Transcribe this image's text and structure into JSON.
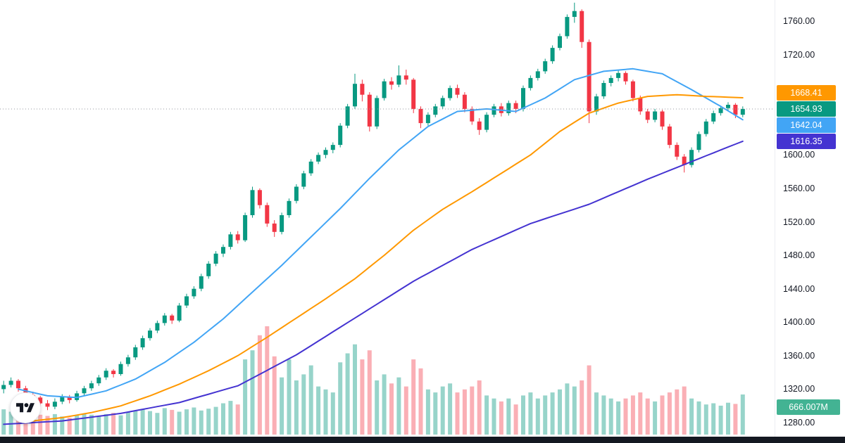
{
  "colors": {
    "background": "#ffffff",
    "candle_up": "#089981",
    "candle_down": "#f23645",
    "volume_up": "rgba(8,153,129,0.42)",
    "volume_down": "rgba(242,54,69,0.40)",
    "ma_fast": "#42a5f5",
    "ma_mid": "#ff9800",
    "ma_slow": "#4433d1",
    "last_price": "#089981",
    "volume_badge": "#43b393",
    "axis_text": "#131722",
    "price_line": "#9598a1"
  },
  "axis": {
    "ticks": [
      {
        "label": "1760.00",
        "price": 1760
      },
      {
        "label": "1720.00",
        "price": 1720
      },
      {
        "label": "1600.00",
        "price": 1600
      },
      {
        "label": "1560.00",
        "price": 1560
      },
      {
        "label": "1520.00",
        "price": 1520
      },
      {
        "label": "1480.00",
        "price": 1480
      },
      {
        "label": "1440.00",
        "price": 1440
      },
      {
        "label": "1400.00",
        "price": 1400
      },
      {
        "label": "1360.00",
        "price": 1360
      },
      {
        "label": "1320.00",
        "price": 1320
      },
      {
        "label": "1280.00",
        "price": 1280
      }
    ]
  },
  "badges": [
    {
      "name": "price-badge-ma-mid",
      "text": "1668.41",
      "color_key": "ma_mid"
    },
    {
      "name": "price-badge-last",
      "text": "1654.93",
      "color_key": "last_price"
    },
    {
      "name": "price-badge-ma-fast",
      "text": "1642.04",
      "color_key": "ma_fast"
    },
    {
      "name": "price-badge-ma-slow",
      "text": "1616.35",
      "color_key": "ma_slow"
    }
  ],
  "volume_badge": {
    "text": "666.007M",
    "color_key": "volume_badge"
  },
  "chart_data": {
    "type": "candlestick",
    "price_axis": {
      "min": 1280,
      "max": 1760
    },
    "last_price": 1654.93,
    "last_volume_label": "666.007M",
    "price_line": {
      "value": 1654.93,
      "style": "dotted"
    },
    "candles": [
      [
        1320,
        1330,
        1315,
        1325
      ],
      [
        1325,
        1334,
        1322,
        1330
      ],
      [
        1330,
        1332,
        1317,
        1321
      ],
      [
        1321,
        1324,
        1309,
        1313
      ],
      [
        1313,
        1317,
        1306,
        1310
      ],
      [
        1310,
        1312,
        1299,
        1303
      ],
      [
        1303,
        1307,
        1295,
        1299
      ],
      [
        1299,
        1309,
        1296,
        1305
      ],
      [
        1305,
        1314,
        1302,
        1311
      ],
      [
        1311,
        1313,
        1303,
        1307
      ],
      [
        1307,
        1318,
        1305,
        1315
      ],
      [
        1315,
        1324,
        1312,
        1321
      ],
      [
        1321,
        1330,
        1318,
        1327
      ],
      [
        1327,
        1337,
        1324,
        1334
      ],
      [
        1334,
        1345,
        1331,
        1342
      ],
      [
        1342,
        1344,
        1334,
        1338
      ],
      [
        1338,
        1353,
        1336,
        1350
      ],
      [
        1350,
        1361,
        1347,
        1358
      ],
      [
        1358,
        1373,
        1355,
        1370
      ],
      [
        1370,
        1384,
        1367,
        1381
      ],
      [
        1381,
        1393,
        1378,
        1390
      ],
      [
        1390,
        1402,
        1387,
        1399
      ],
      [
        1399,
        1411,
        1396,
        1408
      ],
      [
        1408,
        1410,
        1398,
        1402
      ],
      [
        1402,
        1423,
        1400,
        1420
      ],
      [
        1420,
        1434,
        1417,
        1431
      ],
      [
        1431,
        1443,
        1428,
        1440
      ],
      [
        1440,
        1458,
        1437,
        1455
      ],
      [
        1455,
        1473,
        1452,
        1470
      ],
      [
        1470,
        1485,
        1467,
        1482
      ],
      [
        1482,
        1493,
        1478,
        1490
      ],
      [
        1490,
        1508,
        1487,
        1505
      ],
      [
        1505,
        1509,
        1494,
        1498
      ],
      [
        1498,
        1531,
        1496,
        1528
      ],
      [
        1528,
        1562,
        1525,
        1558
      ],
      [
        1558,
        1560,
        1536,
        1540
      ],
      [
        1540,
        1543,
        1514,
        1518
      ],
      [
        1518,
        1522,
        1502,
        1508
      ],
      [
        1508,
        1531,
        1505,
        1528
      ],
      [
        1528,
        1548,
        1525,
        1545
      ],
      [
        1545,
        1565,
        1542,
        1562
      ],
      [
        1562,
        1581,
        1559,
        1578
      ],
      [
        1578,
        1595,
        1575,
        1592
      ],
      [
        1592,
        1603,
        1589,
        1600
      ],
      [
        1600,
        1609,
        1596,
        1606
      ],
      [
        1606,
        1615,
        1602,
        1612
      ],
      [
        1612,
        1638,
        1609,
        1635
      ],
      [
        1635,
        1661,
        1632,
        1658
      ],
      [
        1658,
        1697,
        1655,
        1685
      ],
      [
        1685,
        1690,
        1664,
        1672
      ],
      [
        1672,
        1675,
        1628,
        1634
      ],
      [
        1634,
        1671,
        1631,
        1668
      ],
      [
        1668,
        1691,
        1665,
        1688
      ],
      [
        1688,
        1693,
        1678,
        1684
      ],
      [
        1684,
        1707,
        1681,
        1695
      ],
      [
        1695,
        1702,
        1684,
        1690
      ],
      [
        1690,
        1692,
        1650,
        1655
      ],
      [
        1655,
        1658,
        1632,
        1638
      ],
      [
        1638,
        1651,
        1635,
        1648
      ],
      [
        1648,
        1661,
        1645,
        1658
      ],
      [
        1658,
        1671,
        1655,
        1668
      ],
      [
        1668,
        1683,
        1665,
        1680
      ],
      [
        1680,
        1684,
        1668,
        1672
      ],
      [
        1672,
        1675,
        1651,
        1655
      ],
      [
        1655,
        1658,
        1636,
        1640
      ],
      [
        1640,
        1644,
        1624,
        1630
      ],
      [
        1630,
        1651,
        1627,
        1648
      ],
      [
        1648,
        1661,
        1645,
        1658
      ],
      [
        1658,
        1662,
        1646,
        1650
      ],
      [
        1650,
        1665,
        1647,
        1662
      ],
      [
        1662,
        1665,
        1650,
        1655
      ],
      [
        1655,
        1683,
        1652,
        1680
      ],
      [
        1680,
        1695,
        1677,
        1692
      ],
      [
        1692,
        1703,
        1689,
        1700
      ],
      [
        1700,
        1715,
        1697,
        1712
      ],
      [
        1712,
        1731,
        1709,
        1728
      ],
      [
        1728,
        1745,
        1725,
        1742
      ],
      [
        1742,
        1768,
        1739,
        1765
      ],
      [
        1765,
        1782,
        1758,
        1772
      ],
      [
        1772,
        1774,
        1728,
        1735
      ],
      [
        1735,
        1738,
        1638,
        1652
      ],
      [
        1652,
        1673,
        1648,
        1670
      ],
      [
        1670,
        1689,
        1667,
        1686
      ],
      [
        1686,
        1695,
        1682,
        1692
      ],
      [
        1692,
        1701,
        1688,
        1698
      ],
      [
        1698,
        1700,
        1684,
        1688
      ],
      [
        1688,
        1690,
        1664,
        1668
      ],
      [
        1668,
        1671,
        1648,
        1652
      ],
      [
        1652,
        1655,
        1638,
        1642
      ],
      [
        1642,
        1655,
        1639,
        1652
      ],
      [
        1652,
        1654,
        1630,
        1634
      ],
      [
        1634,
        1637,
        1608,
        1612
      ],
      [
        1612,
        1615,
        1594,
        1598
      ],
      [
        1598,
        1601,
        1579,
        1588
      ],
      [
        1588,
        1609,
        1585,
        1606
      ],
      [
        1606,
        1628,
        1603,
        1625
      ],
      [
        1625,
        1643,
        1622,
        1640
      ],
      [
        1640,
        1653,
        1637,
        1650
      ],
      [
        1650,
        1659,
        1647,
        1656
      ],
      [
        1656,
        1663,
        1652,
        1660
      ],
      [
        1660,
        1662,
        1644,
        1648
      ],
      [
        1648,
        1658,
        1645,
        1654.93
      ]
    ],
    "volumes_millions": [
      420,
      380,
      350,
      400,
      360,
      330,
      310,
      340,
      300,
      280,
      320,
      350,
      330,
      310,
      340,
      360,
      320,
      380,
      400,
      420,
      390,
      360,
      440,
      410,
      380,
      420,
      450,
      400,
      430,
      460,
      520,
      560,
      500,
      1250,
      1400,
      1650,
      1800,
      1300,
      950,
      1250,
      900,
      1000,
      1150,
      800,
      750,
      700,
      1200,
      1350,
      1500,
      1250,
      1400,
      900,
      1000,
      850,
      950,
      800,
      1250,
      1100,
      750,
      700,
      800,
      850,
      700,
      750,
      800,
      900,
      650,
      600,
      550,
      600,
      500,
      650,
      700,
      600,
      650,
      700,
      750,
      850,
      800,
      900,
      1150,
      700,
      650,
      600,
      550,
      600,
      650,
      700,
      600,
      550,
      650,
      700,
      750,
      800,
      600,
      550,
      500,
      520,
      480,
      530,
      510,
      666.007
    ],
    "overlays": [
      {
        "name": "ma-fast",
        "color_key": "ma_fast",
        "last_value": 1642.04,
        "points": [
          [
            2,
            1320
          ],
          [
            6,
            1312
          ],
          [
            10,
            1310
          ],
          [
            14,
            1318
          ],
          [
            18,
            1332
          ],
          [
            22,
            1352
          ],
          [
            26,
            1376
          ],
          [
            30,
            1404
          ],
          [
            34,
            1436
          ],
          [
            38,
            1468
          ],
          [
            42,
            1502
          ],
          [
            46,
            1536
          ],
          [
            50,
            1572
          ],
          [
            54,
            1606
          ],
          [
            58,
            1634
          ],
          [
            62,
            1652
          ],
          [
            66,
            1655
          ],
          [
            70,
            1652
          ],
          [
            74,
            1668
          ],
          [
            78,
            1690
          ],
          [
            82,
            1700
          ],
          [
            86,
            1703
          ],
          [
            90,
            1697
          ],
          [
            94,
            1678
          ],
          [
            98,
            1658
          ],
          [
            101,
            1642.04
          ]
        ]
      },
      {
        "name": "ma-mid",
        "color_key": "ma_mid",
        "last_value": 1668.41,
        "points": [
          [
            4,
            1282
          ],
          [
            8,
            1286
          ],
          [
            12,
            1292
          ],
          [
            16,
            1300
          ],
          [
            20,
            1312
          ],
          [
            24,
            1326
          ],
          [
            28,
            1342
          ],
          [
            32,
            1360
          ],
          [
            36,
            1382
          ],
          [
            40,
            1405
          ],
          [
            44,
            1428
          ],
          [
            48,
            1452
          ],
          [
            52,
            1480
          ],
          [
            56,
            1510
          ],
          [
            60,
            1535
          ],
          [
            64,
            1556
          ],
          [
            68,
            1578
          ],
          [
            72,
            1600
          ],
          [
            76,
            1628
          ],
          [
            80,
            1650
          ],
          [
            84,
            1662
          ],
          [
            88,
            1670
          ],
          [
            92,
            1672
          ],
          [
            96,
            1670
          ],
          [
            101,
            1668.41
          ]
        ]
      },
      {
        "name": "ma-slow",
        "color_key": "ma_slow",
        "last_value": 1616.35,
        "points": [
          [
            0,
            1278
          ],
          [
            8,
            1282
          ],
          [
            16,
            1291
          ],
          [
            24,
            1304
          ],
          [
            32,
            1324
          ],
          [
            40,
            1361
          ],
          [
            48,
            1405
          ],
          [
            56,
            1449
          ],
          [
            64,
            1487
          ],
          [
            72,
            1518
          ],
          [
            80,
            1541
          ],
          [
            88,
            1571
          ],
          [
            94,
            1592
          ],
          [
            98,
            1606
          ],
          [
            101,
            1616.35
          ]
        ]
      }
    ]
  }
}
